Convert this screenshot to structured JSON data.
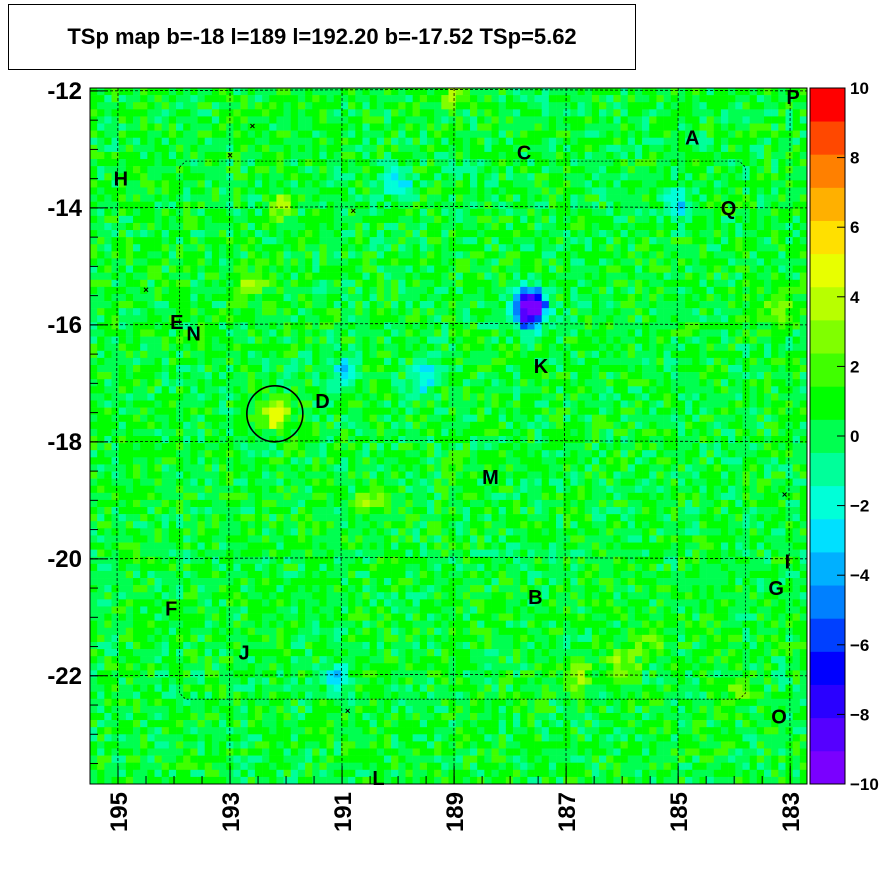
{
  "title": "TSp map b=-18 l=189 l=192.20 b=-17.52 TSp=5.62",
  "chart_data": {
    "type": "heatmap",
    "title": "TSp map b=-18 l=189 l=192.20 b=-17.52 TSp=5.62",
    "xlabel": "",
    "ylabel": "",
    "x_reversed": true,
    "xlim": [
      195.5,
      182.7
    ],
    "ylim": [
      -23.85,
      -11.95
    ],
    "x_ticks": [
      195,
      193,
      191,
      189,
      187,
      185,
      183
    ],
    "x_tick_labels": [
      "195",
      "193",
      "191",
      "189",
      "187",
      "185",
      "183"
    ],
    "y_ticks": [
      -12,
      -14,
      -16,
      -18,
      -20,
      -22
    ],
    "y_tick_labels": [
      "-12",
      "-14",
      "-16",
      "-18",
      "-20",
      "-22"
    ],
    "z_range": [
      -10,
      10
    ],
    "colorbar_ticks": [
      10,
      8,
      6,
      4,
      2,
      0,
      -2,
      -4,
      -6,
      -8,
      -10
    ],
    "colorbar_tick_labels": [
      "10",
      "8",
      "6",
      "4",
      "2",
      "0",
      "−2",
      "−4",
      "−6",
      "−8",
      "−10"
    ],
    "colorbar_colors": [
      "#7a00ff",
      "#5500ff",
      "#2a00ff",
      "#0000ff",
      "#0040ff",
      "#0080ff",
      "#00b0ff",
      "#00e0ff",
      "#00ffd8",
      "#00ff9a",
      "#00ff50",
      "#00ff00",
      "#40ff00",
      "#80ff00",
      "#b8ff00",
      "#e8ff00",
      "#ffe000",
      "#ffb000",
      "#ff8000",
      "#ff4800",
      "#ff0000"
    ],
    "background_value": 0.5,
    "hot_spots": [
      {
        "l": 192.2,
        "b": -17.52,
        "value": 5.6
      },
      {
        "l": 187.6,
        "b": -15.7,
        "value": -6.5
      },
      {
        "l": 187.7,
        "b": -15.9,
        "value": -5
      },
      {
        "l": 187.65,
        "b": -15.55,
        "value": -4
      },
      {
        "l": 189.5,
        "b": -16.9,
        "value": -3
      },
      {
        "l": 191.0,
        "b": -16.8,
        "value": -3
      },
      {
        "l": 185.0,
        "b": -13.9,
        "value": -3
      },
      {
        "l": 190.0,
        "b": -13.6,
        "value": -3
      },
      {
        "l": 191.1,
        "b": -22.0,
        "value": -3
      },
      {
        "l": 183.2,
        "b": -15.7,
        "value": 3
      },
      {
        "l": 192.6,
        "b": -15.3,
        "value": 3
      },
      {
        "l": 186.0,
        "b": -21.8,
        "value": 3
      },
      {
        "l": 186.8,
        "b": -22.0,
        "value": 3
      },
      {
        "l": 183.9,
        "b": -22.2,
        "value": 3
      },
      {
        "l": 192.1,
        "b": -14.0,
        "value": 3
      },
      {
        "l": 185.5,
        "b": -21.4,
        "value": 3
      },
      {
        "l": 190.5,
        "b": -19.0,
        "value": 2.5
      },
      {
        "l": 189.0,
        "b": -12.05,
        "value": 3
      }
    ],
    "circle": {
      "l": 192.2,
      "b": -17.52,
      "radius_deg": 0.5
    },
    "crosses": [
      {
        "l": 192.6,
        "b": -12.6
      },
      {
        "l": 193.0,
        "b": -13.1
      },
      {
        "l": 190.8,
        "b": -14.05
      },
      {
        "l": 194.5,
        "b": -15.4
      },
      {
        "l": 183.1,
        "b": -18.9
      },
      {
        "l": 190.9,
        "b": -22.6
      }
    ],
    "grid_lines_l": [
      195,
      193,
      191,
      189,
      187,
      185,
      183
    ],
    "grid_lines_b": [
      -12,
      -14,
      -16,
      -18,
      -20,
      -22
    ],
    "source_labels": [
      {
        "text": "P",
        "l": 182.95,
        "b": -12.1
      },
      {
        "text": "A",
        "l": 184.75,
        "b": -12.8
      },
      {
        "text": "C",
        "l": 187.75,
        "b": -13.05
      },
      {
        "text": "H",
        "l": 194.95,
        "b": -13.5
      },
      {
        "text": "Q",
        "l": 184.1,
        "b": -14.0
      },
      {
        "text": "E",
        "l": 193.95,
        "b": -15.95
      },
      {
        "text": "N",
        "l": 193.65,
        "b": -16.15
      },
      {
        "text": "K",
        "l": 187.45,
        "b": -16.7
      },
      {
        "text": "D",
        "l": 191.35,
        "b": -17.3
      },
      {
        "text": "M",
        "l": 188.35,
        "b": -18.6
      },
      {
        "text": "I",
        "l": 183.05,
        "b": -20.05
      },
      {
        "text": "G",
        "l": 183.25,
        "b": -20.5
      },
      {
        "text": "B",
        "l": 187.55,
        "b": -20.65
      },
      {
        "text": "F",
        "l": 194.05,
        "b": -20.85
      },
      {
        "text": "J",
        "l": 192.75,
        "b": -21.6
      },
      {
        "text": "O",
        "l": 183.2,
        "b": -22.7
      },
      {
        "text": "L",
        "l": 190.35,
        "b": -23.75
      }
    ]
  }
}
